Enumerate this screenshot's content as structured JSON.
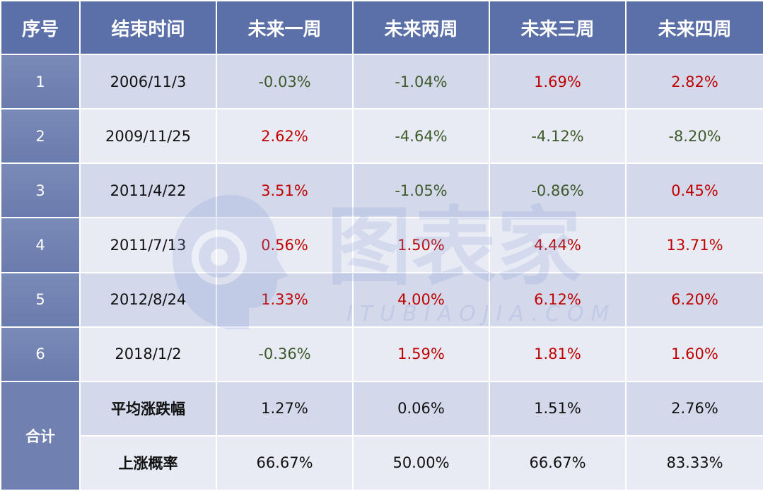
{
  "headers": [
    "序号",
    "结束时间",
    "未来一周",
    "未来两周",
    "未来三周",
    "未来四周"
  ],
  "rows": [
    {
      "seq": "1",
      "date": "2006/11/3",
      "w1": "-0.03%",
      "w2": "-1.04%",
      "w3": "1.69%",
      "w4": "2.82%"
    },
    {
      "seq": "2",
      "date": "2009/11/25",
      "w1": "2.62%",
      "w2": "-4.64%",
      "w3": "-4.12%",
      "w4": "-8.20%"
    },
    {
      "seq": "3",
      "date": "2011/4/22",
      "w1": "3.51%",
      "w2": "-1.05%",
      "w3": "-0.86%",
      "w4": "0.45%"
    },
    {
      "seq": "4",
      "date": "2011/7/13",
      "w1": "0.56%",
      "w2": "1.50%",
      "w3": "4.44%",
      "w4": "13.71%"
    },
    {
      "seq": "5",
      "date": "2012/8/24",
      "w1": "1.33%",
      "w2": "4.00%",
      "w3": "6.12%",
      "w4": "6.20%"
    },
    {
      "seq": "6",
      "date": "2018/1/2",
      "w1": "-0.36%",
      "w2": "1.59%",
      "w3": "1.81%",
      "w4": "1.60%"
    }
  ],
  "summary": {
    "label": "合计",
    "avg": {
      "label": "平均涨跌幅",
      "w1": "1.27%",
      "w2": "0.06%",
      "w3": "1.51%",
      "w4": "2.76%"
    },
    "prob": {
      "label": "上涨概率",
      "w1": "66.67%",
      "w2": "50.00%",
      "w3": "66.67%",
      "w4": "83.33%"
    }
  },
  "colors": {
    "positive": "#c00000",
    "negative": "#3c5a2a",
    "header_bg": "#5b6fa8"
  },
  "watermark": {
    "text": "图表家",
    "sub": "ITUBIAOJIA.COM"
  }
}
